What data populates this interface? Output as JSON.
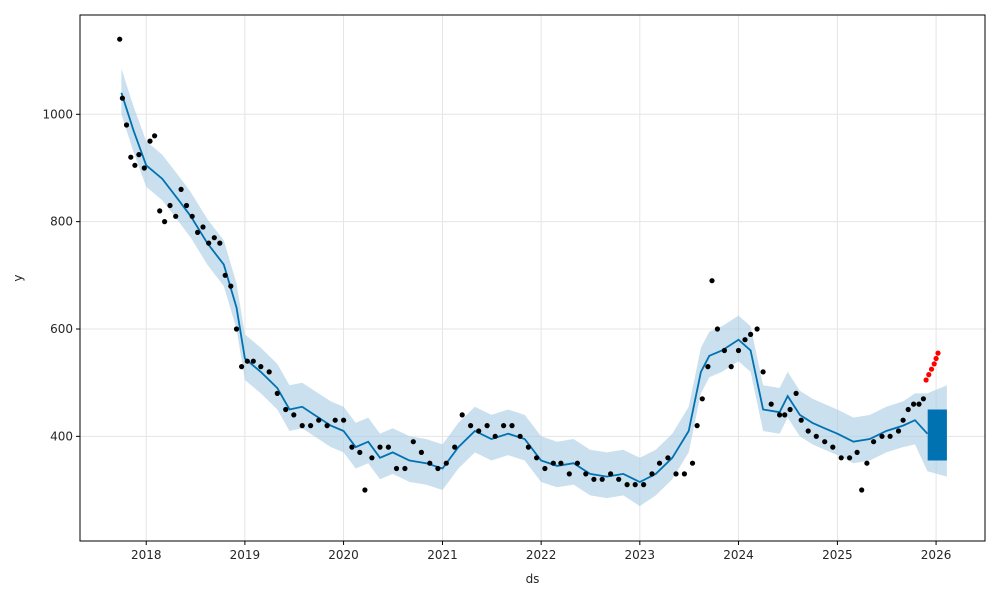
{
  "chart_data": {
    "type": "line",
    "xlabel": "ds",
    "ylabel": "y",
    "xlim": [
      "2017-05-01",
      "2026-07-01"
    ],
    "ylim": [
      205,
      1185
    ],
    "grid": true,
    "x_ticks": [
      "2018",
      "2019",
      "2020",
      "2021",
      "2022",
      "2023",
      "2024",
      "2025",
      "2026"
    ],
    "y_ticks": [
      400,
      600,
      800,
      1000
    ],
    "colors": {
      "observed": "#000000",
      "recent_observed": "#ff0000",
      "forecast": "#0072b2",
      "interval": "#a6cbe3",
      "grid": "#e5e5e5"
    },
    "forecast_line": {
      "x": [
        "2017-10-01",
        "2017-11-15",
        "2018-01-01",
        "2018-03-01",
        "2018-05-01",
        "2018-06-15",
        "2018-08-15",
        "2018-10-15",
        "2018-12-01",
        "2019-01-01",
        "2019-03-01",
        "2019-05-01",
        "2019-06-15",
        "2019-08-01",
        "2019-09-15",
        "2019-11-15",
        "2020-01-01",
        "2020-02-15",
        "2020-04-01",
        "2020-05-15",
        "2020-07-01",
        "2020-09-01",
        "2020-11-01",
        "2021-01-01",
        "2021-03-01",
        "2021-05-01",
        "2021-07-01",
        "2021-09-01",
        "2021-11-01",
        "2022-01-01",
        "2022-03-01",
        "2022-05-01",
        "2022-07-01",
        "2022-09-01",
        "2022-11-01",
        "2023-01-01",
        "2023-03-01",
        "2023-05-01",
        "2023-07-01",
        "2023-08-15",
        "2023-09-15",
        "2023-11-01",
        "2024-01-01",
        "2024-02-15",
        "2024-04-01",
        "2024-06-01",
        "2024-07-01",
        "2024-08-15",
        "2024-10-01",
        "2024-11-15",
        "2025-01-01",
        "2025-03-01",
        "2025-05-01",
        "2025-07-01",
        "2025-09-01",
        "2025-10-15",
        "2025-11-30"
      ],
      "y": [
        1040,
        970,
        905,
        880,
        840,
        810,
        760,
        720,
        640,
        545,
        520,
        490,
        450,
        455,
        440,
        420,
        410,
        380,
        390,
        360,
        370,
        355,
        350,
        340,
        380,
        410,
        395,
        405,
        395,
        355,
        345,
        350,
        330,
        325,
        330,
        315,
        330,
        360,
        410,
        520,
        550,
        560,
        580,
        560,
        450,
        445,
        475,
        440,
        425,
        415,
        405,
        390,
        395,
        410,
        420,
        430,
        405
      ]
    },
    "interval": {
      "x": [
        "2017-10-01",
        "2017-11-15",
        "2018-01-01",
        "2018-03-01",
        "2018-05-01",
        "2018-06-15",
        "2018-08-15",
        "2018-10-15",
        "2018-12-01",
        "2019-01-01",
        "2019-03-01",
        "2019-05-01",
        "2019-06-15",
        "2019-08-01",
        "2019-09-15",
        "2019-11-15",
        "2020-01-01",
        "2020-02-15",
        "2020-04-01",
        "2020-05-15",
        "2020-07-01",
        "2020-09-01",
        "2020-11-01",
        "2021-01-01",
        "2021-03-01",
        "2021-05-01",
        "2021-07-01",
        "2021-09-01",
        "2021-11-01",
        "2022-01-01",
        "2022-03-01",
        "2022-05-01",
        "2022-07-01",
        "2022-09-01",
        "2022-11-01",
        "2023-01-01",
        "2023-03-01",
        "2023-05-01",
        "2023-07-01",
        "2023-08-15",
        "2023-09-15",
        "2023-11-01",
        "2024-01-01",
        "2024-02-15",
        "2024-04-01",
        "2024-06-01",
        "2024-07-01",
        "2024-08-15",
        "2024-10-01",
        "2024-11-15",
        "2025-01-01",
        "2025-03-01",
        "2025-05-01",
        "2025-07-01",
        "2025-09-01",
        "2025-10-15",
        "2025-11-30",
        "2026-02-10"
      ],
      "lower": [
        1000,
        930,
        865,
        840,
        800,
        770,
        720,
        680,
        600,
        505,
        480,
        450,
        410,
        415,
        400,
        380,
        370,
        340,
        350,
        320,
        330,
        315,
        310,
        300,
        340,
        370,
        355,
        365,
        355,
        315,
        305,
        310,
        290,
        285,
        290,
        270,
        290,
        320,
        370,
        480,
        510,
        520,
        540,
        520,
        410,
        405,
        435,
        400,
        385,
        375,
        365,
        350,
        355,
        370,
        380,
        385,
        335,
        325
      ],
      "upper": [
        1085,
        1015,
        950,
        925,
        885,
        855,
        805,
        765,
        685,
        590,
        565,
        535,
        495,
        500,
        485,
        465,
        455,
        425,
        435,
        405,
        415,
        400,
        395,
        385,
        425,
        455,
        440,
        450,
        440,
        400,
        390,
        395,
        375,
        370,
        375,
        360,
        375,
        405,
        455,
        565,
        595,
        605,
        625,
        605,
        495,
        490,
        520,
        485,
        470,
        460,
        450,
        435,
        440,
        455,
        465,
        480,
        480,
        495
      ]
    },
    "forecast_band": {
      "x_start": "2025-12-01",
      "x_end": "2026-02-10",
      "y_low": 355,
      "y_high": 450
    },
    "observed": {
      "x": [
        "2017-09-25",
        "2017-10-05",
        "2017-10-20",
        "2017-11-05",
        "2017-11-20",
        "2017-12-05",
        "2017-12-25",
        "2018-01-15",
        "2018-02-01",
        "2018-02-20",
        "2018-03-10",
        "2018-03-30",
        "2018-04-20",
        "2018-05-10",
        "2018-05-30",
        "2018-06-20",
        "2018-07-10",
        "2018-07-30",
        "2018-08-20",
        "2018-09-10",
        "2018-09-30",
        "2018-10-20",
        "2018-11-10",
        "2018-12-01",
        "2018-12-20",
        "2019-01-10",
        "2019-02-01",
        "2019-03-01",
        "2019-04-01",
        "2019-05-01",
        "2019-06-01",
        "2019-07-01",
        "2019-08-01",
        "2019-09-01",
        "2019-10-01",
        "2019-11-01",
        "2019-12-01",
        "2020-01-01",
        "2020-02-01",
        "2020-03-01",
        "2020-03-20",
        "2020-04-15",
        "2020-05-15",
        "2020-06-15",
        "2020-07-15",
        "2020-08-15",
        "2020-09-15",
        "2020-10-15",
        "2020-11-15",
        "2020-12-15",
        "2021-01-15",
        "2021-02-15",
        "2021-03-15",
        "2021-04-15",
        "2021-05-15",
        "2021-06-15",
        "2021-07-15",
        "2021-08-15",
        "2021-09-15",
        "2021-10-15",
        "2021-11-15",
        "2021-12-15",
        "2022-01-15",
        "2022-02-15",
        "2022-03-15",
        "2022-04-15",
        "2022-05-15",
        "2022-06-15",
        "2022-07-15",
        "2022-08-15",
        "2022-09-15",
        "2022-10-15",
        "2022-11-15",
        "2022-12-15",
        "2023-01-15",
        "2023-02-15",
        "2023-03-15",
        "2023-04-15",
        "2023-05-15",
        "2023-06-15",
        "2023-07-15",
        "2023-08-01",
        "2023-08-20",
        "2023-09-10",
        "2023-09-25",
        "2023-10-15",
        "2023-11-10",
        "2023-12-05",
        "2024-01-01",
        "2024-01-25",
        "2024-02-15",
        "2024-03-10",
        "2024-04-01",
        "2024-05-01",
        "2024-06-01",
        "2024-06-20",
        "2024-07-10",
        "2024-08-01",
        "2024-08-20",
        "2024-09-15",
        "2024-10-15",
        "2024-11-15",
        "2024-12-15",
        "2025-01-15",
        "2025-02-15",
        "2025-03-15",
        "2025-04-01",
        "2025-04-20",
        "2025-05-15",
        "2025-06-15",
        "2025-07-15",
        "2025-08-15",
        "2025-09-01",
        "2025-09-20",
        "2025-10-10",
        "2025-10-30",
        "2025-11-15"
      ],
      "y": [
        1140,
        1030,
        980,
        920,
        905,
        925,
        900,
        950,
        960,
        820,
        800,
        830,
        810,
        860,
        830,
        810,
        780,
        790,
        760,
        770,
        760,
        700,
        680,
        600,
        530,
        540,
        540,
        530,
        520,
        480,
        450,
        440,
        420,
        420,
        430,
        420,
        430,
        430,
        380,
        370,
        300,
        360,
        380,
        380,
        340,
        340,
        390,
        370,
        350,
        340,
        350,
        380,
        440,
        420,
        410,
        420,
        400,
        420,
        420,
        400,
        380,
        360,
        340,
        350,
        350,
        330,
        350,
        330,
        320,
        320,
        330,
        320,
        310,
        310,
        310,
        330,
        350,
        360,
        330,
        330,
        350,
        420,
        470,
        530,
        690,
        600,
        560,
        530,
        560,
        580,
        590,
        600,
        520,
        460,
        440,
        440,
        450,
        480,
        430,
        410,
        400,
        390,
        380,
        360,
        360,
        370,
        300,
        350,
        390,
        400,
        400,
        410,
        430,
        450,
        460,
        460,
        470
      ]
    },
    "recent_observed": {
      "x": [
        "2025-11-25",
        "2025-12-05",
        "2025-12-15",
        "2025-12-25",
        "2026-01-01",
        "2026-01-08"
      ],
      "y": [
        505,
        515,
        525,
        535,
        545,
        555
      ]
    }
  }
}
